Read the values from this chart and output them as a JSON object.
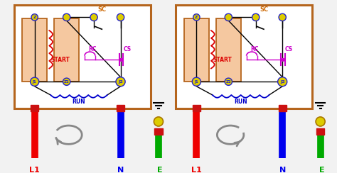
{
  "bg_color": "#f2f2f2",
  "box_color": "#b5651d",
  "box_fill": "#f5c8a0",
  "box_bg": "#ffffff",
  "terminal_yellow": "#ddcc00",
  "terminal_outline": "#2222cc",
  "wire_red": "#ee0000",
  "wire_blue": "#0000ee",
  "wire_green": "#00aa00",
  "coil_start_color": "#dd0000",
  "coil_run_color": "#0000cc",
  "rc_cs_color": "#cc00cc",
  "sc_color": "#cc6600",
  "black": "#000000",
  "arrow_color": "#888888",
  "label_L1": "L1",
  "label_N": "N",
  "label_E": "E",
  "label_START": "START",
  "label_RUN": "RUN",
  "label_SC": "SC",
  "label_RC": "RC",
  "label_CS": "CS"
}
